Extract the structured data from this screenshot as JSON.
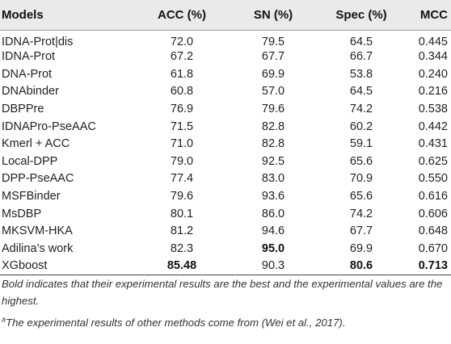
{
  "table": {
    "headers": {
      "model": "Models",
      "acc": "ACC (%)",
      "sn": "SN (%)",
      "spec": "Spec (%)",
      "mcc": "MCC"
    },
    "rows": [
      {
        "model": "IDNA-Prot|dis",
        "acc": "72.0",
        "sn": "79.5",
        "spec": "64.5",
        "mcc": "0.445"
      },
      {
        "model": "IDNA-Prot",
        "acc": "67.2",
        "sn": "67.7",
        "spec": "66.7",
        "mcc": "0.344"
      },
      {
        "model": "DNA-Prot",
        "acc": "61.8",
        "sn": "69.9",
        "spec": "53.8",
        "mcc": "0.240"
      },
      {
        "model": "DNAbinder",
        "acc": "60.8",
        "sn": "57.0",
        "spec": "64.5",
        "mcc": "0.216"
      },
      {
        "model": "DBPPre",
        "acc": "76.9",
        "sn": "79.6",
        "spec": "74.2",
        "mcc": "0.538"
      },
      {
        "model": "IDNAPro-PseAAC",
        "acc": "71.5",
        "sn": "82.8",
        "spec": "60.2",
        "mcc": "0.442"
      },
      {
        "model": "Kmerl + ACC",
        "acc": "71.0",
        "sn": "82.8",
        "spec": "59.1",
        "mcc": "0.431"
      },
      {
        "model": "Local-DPP",
        "acc": "79.0",
        "sn": "92.5",
        "spec": "65.6",
        "mcc": "0.625"
      },
      {
        "model": "DPP-PseAAC",
        "acc": "77.4",
        "sn": "83.0",
        "spec": "70.9",
        "mcc": "0.550"
      },
      {
        "model": "MSFBinder",
        "acc": "79.6",
        "sn": "93.6",
        "spec": "65.6",
        "mcc": "0.616"
      },
      {
        "model": "MsDBP",
        "acc": "80.1",
        "sn": "86.0",
        "spec": "74.2",
        "mcc": "0.606"
      },
      {
        "model": "MKSVM-HKA",
        "acc": "81.2",
        "sn": "94.6",
        "spec": "67.7",
        "mcc": "0.648"
      },
      {
        "model": "Adilina’s work",
        "acc": "82.3",
        "sn": "95.0",
        "spec": "69.9",
        "mcc": "0.670"
      },
      {
        "model": "XGboost",
        "acc": "85.48",
        "sn": "90.3",
        "spec": "80.6",
        "mcc": "0.713"
      }
    ]
  },
  "notes": {
    "bold_note": "Bold indicates that their experimental results are the best and the experimental values are the highest.",
    "source_marker": "a",
    "source_note": "The experimental results of other methods come from (Wei et al., 2017)."
  }
}
